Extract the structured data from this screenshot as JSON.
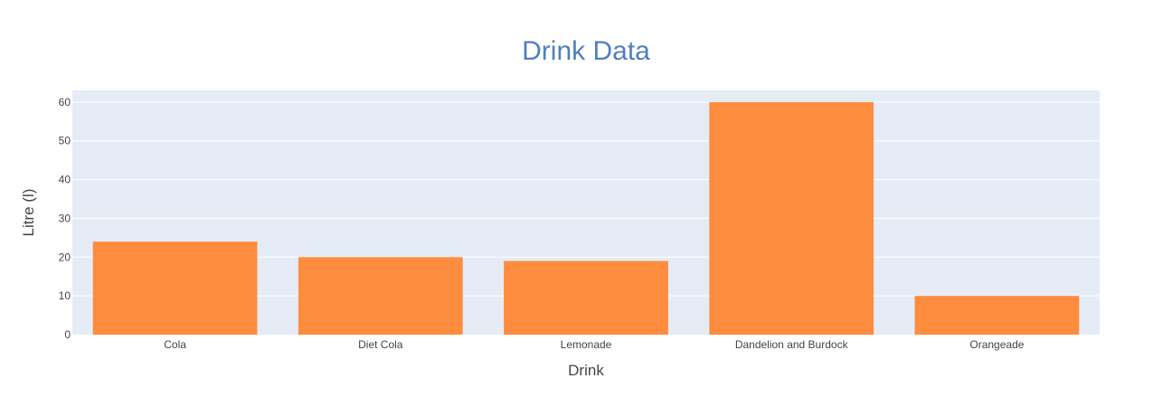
{
  "chart_data": {
    "type": "bar",
    "title": "Drink Data",
    "xlabel": "Drink",
    "ylabel": "Litre (l)",
    "categories": [
      "Cola",
      "Diet Cola",
      "Lemonade",
      "Dandelion and Burdock",
      "Orangeade"
    ],
    "values": [
      24,
      20,
      19,
      60,
      10
    ],
    "ylim": [
      0,
      63
    ],
    "yticks": [
      0,
      10,
      20,
      30,
      40,
      50,
      60
    ],
    "grid": true,
    "legend": "none"
  },
  "colors": {
    "bar": "#fe8c3f",
    "plot_background": "#e5ecf6",
    "gridline": "#ffffff",
    "title": "#5080bd",
    "text": "#444444"
  }
}
